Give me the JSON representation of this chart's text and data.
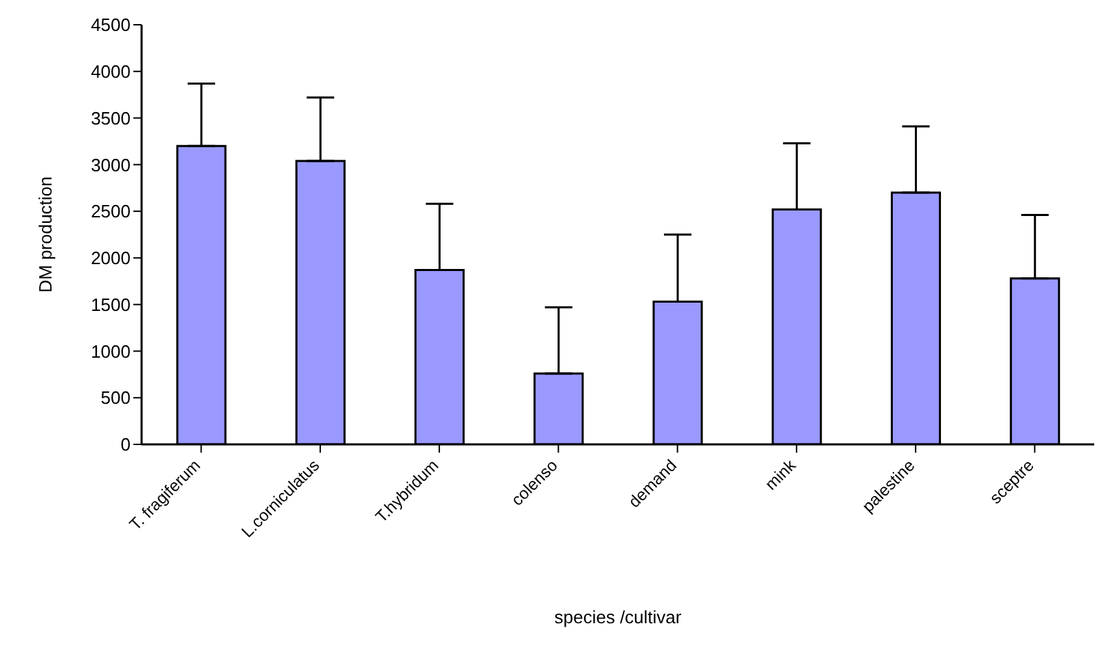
{
  "chart_data": {
    "type": "bar",
    "xlabel": "species /cultivar",
    "ylabel": "DM production",
    "categories": [
      "T. fragiferum",
      "L.corniculatus",
      "T.hybridum",
      "colenso",
      "demand",
      "mink",
      "palestine",
      "sceptre"
    ],
    "values": [
      3200,
      3040,
      1870,
      760,
      1530,
      2520,
      2700,
      1780
    ],
    "errors": [
      [
        3200,
        3870
      ],
      [
        3040,
        3720
      ],
      [
        1870,
        2580
      ],
      [
        760,
        1470
      ],
      [
        1530,
        2250
      ],
      [
        2520,
        3230
      ],
      [
        2700,
        3410
      ],
      [
        1780,
        2460
      ]
    ],
    "color": "#9999ff",
    "ylim": [
      0,
      4500
    ],
    "yticks": [
      0,
      500,
      1000,
      1500,
      2000,
      2500,
      3000,
      3500,
      4000,
      4500
    ],
    "grid": false,
    "legend": false
  }
}
